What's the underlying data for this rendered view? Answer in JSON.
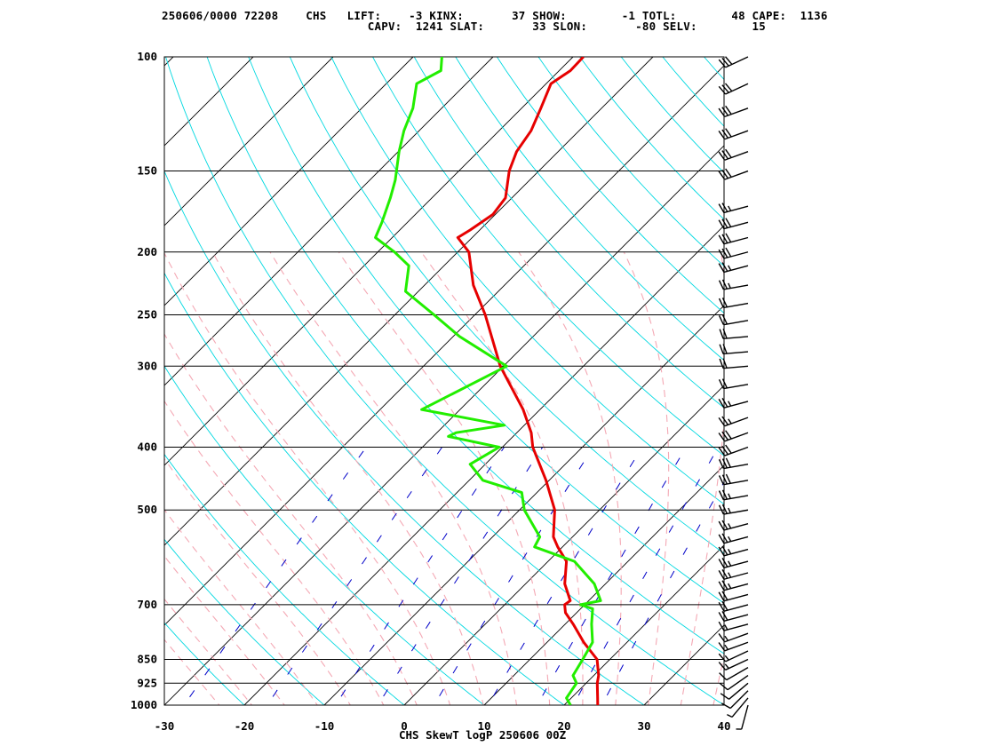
{
  "header": {
    "date_station": "250606/0000 72208",
    "station_id": "CHS",
    "indices": [
      {
        "label": "LIFT:",
        "value": "-3"
      },
      {
        "label": "KINX:",
        "value": "37"
      },
      {
        "label": "SHOW:",
        "value": "-1"
      },
      {
        "label": "TOTL:",
        "value": "48"
      },
      {
        "label": "CAPE:",
        "value": "1136"
      },
      {
        "label": "CAPV:",
        "value": "1241"
      },
      {
        "label": "SLAT:",
        "value": "33"
      },
      {
        "label": "SLON:",
        "value": "-80"
      },
      {
        "label": "SELV:",
        "value": "15"
      }
    ]
  },
  "caption": "CHS SkewT logP 250606 00Z",
  "colors": {
    "temperature": "#e60000",
    "dewpoint": "#22ee00",
    "isotherm": "#000000",
    "isobar": "#000000",
    "dry_adiabat": "#00d8e0",
    "moist_adiabat": "#f4a8b4",
    "mixing_ratio": "#0000c8",
    "wind_barb": "#000000"
  },
  "chart_data": {
    "type": "skewt",
    "title": "CHS SkewT logP 250606 00Z",
    "xlabel": "",
    "ylabel": "",
    "xlim": [
      -30,
      40
    ],
    "plim": [
      1000,
      100
    ],
    "pressure_ticks": [
      100,
      150,
      200,
      250,
      300,
      400,
      500,
      700,
      850,
      925,
      1000
    ],
    "pressure_tick_labels": [
      "100",
      "150",
      "200",
      "250",
      "300",
      "400",
      "500",
      "700",
      "850",
      "925",
      "1000"
    ],
    "temperature_ticks": [
      -30,
      -20,
      -10,
      0,
      10,
      20,
      30,
      40
    ],
    "temperature_tick_labels": [
      "-30",
      "-20",
      "-10",
      "0",
      "10",
      "20",
      "30",
      "40"
    ],
    "grid": true,
    "temperature_profile": [
      [
        1000,
        24.2
      ],
      [
        975,
        23.3
      ],
      [
        925,
        21.4
      ],
      [
        900,
        20.6
      ],
      [
        850,
        18.4
      ],
      [
        800,
        14.6
      ],
      [
        750,
        11.0
      ],
      [
        720,
        8.6
      ],
      [
        700,
        7.5
      ],
      [
        690,
        7.7
      ],
      [
        650,
        4.9
      ],
      [
        600,
        2.3
      ],
      [
        570,
        -0.6
      ],
      [
        550,
        -2.4
      ],
      [
        500,
        -5.6
      ],
      [
        450,
        -10.4
      ],
      [
        400,
        -16.2
      ],
      [
        380,
        -18.2
      ],
      [
        350,
        -22.1
      ],
      [
        300,
        -30.4
      ],
      [
        250,
        -38.7
      ],
      [
        225,
        -43.9
      ],
      [
        200,
        -48.6
      ],
      [
        190,
        -51.8
      ],
      [
        185,
        -51.2
      ],
      [
        175,
        -50.3
      ],
      [
        165,
        -50.8
      ],
      [
        150,
        -53.7
      ],
      [
        140,
        -55.2
      ],
      [
        130,
        -56.0
      ],
      [
        120,
        -57.6
      ],
      [
        110,
        -59.4
      ],
      [
        105,
        -58.6
      ],
      [
        100,
        -58.7
      ]
    ],
    "dewpoint_profile": [
      [
        1000,
        20.8
      ],
      [
        975,
        19.4
      ],
      [
        925,
        18.8
      ],
      [
        900,
        17.4
      ],
      [
        850,
        16.6
      ],
      [
        800,
        15.7
      ],
      [
        750,
        13.3
      ],
      [
        710,
        11.5
      ],
      [
        700,
        9.5
      ],
      [
        690,
        11.5
      ],
      [
        650,
        8.6
      ],
      [
        600,
        3.3
      ],
      [
        570,
        -3.5
      ],
      [
        550,
        -4.1
      ],
      [
        500,
        -9.4
      ],
      [
        470,
        -11.9
      ],
      [
        450,
        -18.3
      ],
      [
        425,
        -21.9
      ],
      [
        400,
        -20.4
      ],
      [
        385,
        -28.1
      ],
      [
        380,
        -27.6
      ],
      [
        370,
        -22.5
      ],
      [
        350,
        -34.8
      ],
      [
        300,
        -29.6
      ],
      [
        270,
        -39.2
      ],
      [
        250,
        -45.1
      ],
      [
        230,
        -51.6
      ],
      [
        210,
        -54.4
      ],
      [
        200,
        -57.9
      ],
      [
        190,
        -62.1
      ],
      [
        180,
        -63.2
      ],
      [
        165,
        -65.2
      ],
      [
        155,
        -66.8
      ],
      [
        140,
        -69.9
      ],
      [
        130,
        -71.9
      ],
      [
        120,
        -73.6
      ],
      [
        110,
        -76.2
      ],
      [
        105,
        -74.8
      ],
      [
        100,
        -76.4
      ]
    ],
    "wind_profile": [
      [
        1000,
        195,
        5
      ],
      [
        975,
        220,
        5
      ],
      [
        950,
        225,
        10
      ],
      [
        925,
        230,
        10
      ],
      [
        900,
        235,
        10
      ],
      [
        875,
        240,
        10
      ],
      [
        850,
        245,
        15
      ],
      [
        825,
        245,
        15
      ],
      [
        800,
        250,
        15
      ],
      [
        775,
        250,
        15
      ],
      [
        750,
        255,
        15
      ],
      [
        725,
        255,
        20
      ],
      [
        700,
        255,
        20
      ],
      [
        675,
        255,
        20
      ],
      [
        650,
        255,
        25
      ],
      [
        625,
        255,
        25
      ],
      [
        600,
        255,
        25
      ],
      [
        575,
        255,
        25
      ],
      [
        550,
        255,
        25
      ],
      [
        525,
        255,
        25
      ],
      [
        500,
        260,
        25
      ],
      [
        475,
        260,
        25
      ],
      [
        450,
        260,
        30
      ],
      [
        425,
        260,
        30
      ],
      [
        400,
        250,
        30
      ],
      [
        380,
        250,
        30
      ],
      [
        360,
        250,
        25
      ],
      [
        340,
        255,
        25
      ],
      [
        320,
        260,
        20
      ],
      [
        300,
        265,
        20
      ],
      [
        285,
        265,
        20
      ],
      [
        270,
        265,
        20
      ],
      [
        255,
        260,
        20
      ],
      [
        240,
        260,
        20
      ],
      [
        225,
        260,
        25
      ],
      [
        210,
        255,
        25
      ],
      [
        200,
        255,
        30
      ],
      [
        190,
        255,
        30
      ],
      [
        180,
        255,
        30
      ],
      [
        170,
        255,
        25
      ],
      [
        150,
        250,
        30
      ],
      [
        140,
        250,
        30
      ],
      [
        130,
        250,
        30
      ],
      [
        120,
        250,
        30
      ],
      [
        110,
        245,
        30
      ],
      [
        100,
        245,
        30
      ]
    ]
  }
}
